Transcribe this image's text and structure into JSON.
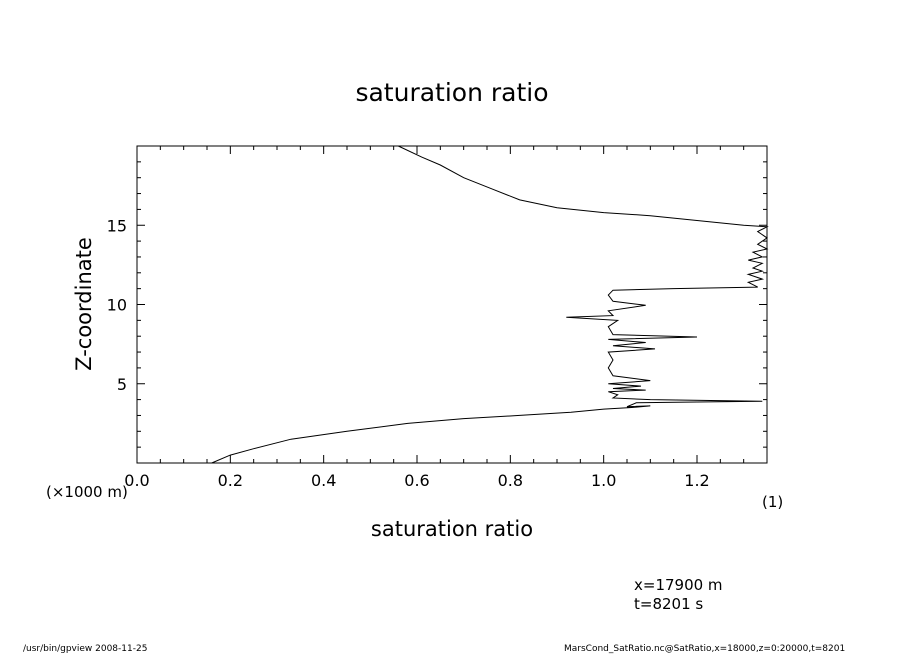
{
  "chart_data": {
    "type": "line",
    "title": "saturation ratio",
    "xlabel": "saturation ratio",
    "ylabel": "Z-coordinate",
    "x_unit": "(1)",
    "y_unit": "(×1000 m)",
    "xlim": [
      0.0,
      1.35
    ],
    "ylim": [
      0,
      20
    ],
    "x_ticks": [
      "0.0",
      "0.2",
      "0.4",
      "0.6",
      "0.8",
      "1.0",
      "1.2"
    ],
    "y_ticks": [
      "5",
      "10",
      "15"
    ],
    "x_tick_values": [
      0.0,
      0.2,
      0.4,
      0.6,
      0.8,
      1.0,
      1.2
    ],
    "y_tick_values": [
      5,
      10,
      15
    ],
    "grid": false,
    "series": [
      {
        "points": [
          [
            0.16,
            0.0
          ],
          [
            0.2,
            0.5
          ],
          [
            0.25,
            0.9
          ],
          [
            0.33,
            1.5
          ],
          [
            0.45,
            2.0
          ],
          [
            0.58,
            2.5
          ],
          [
            0.7,
            2.8
          ],
          [
            0.82,
            3.0
          ],
          [
            0.93,
            3.2
          ],
          [
            1.0,
            3.4
          ],
          [
            1.06,
            3.5
          ],
          [
            1.1,
            3.6
          ],
          [
            1.05,
            3.55
          ],
          [
            1.07,
            3.8
          ],
          [
            1.2,
            3.85
          ],
          [
            1.34,
            3.9
          ],
          [
            1.1,
            4.0
          ],
          [
            1.02,
            4.1
          ],
          [
            1.03,
            4.3
          ],
          [
            1.01,
            4.5
          ],
          [
            1.09,
            4.6
          ],
          [
            1.02,
            4.7
          ],
          [
            1.08,
            4.85
          ],
          [
            1.01,
            5.0
          ],
          [
            1.1,
            5.2
          ],
          [
            1.02,
            5.5
          ],
          [
            1.01,
            6.0
          ],
          [
            1.02,
            6.5
          ],
          [
            1.01,
            7.0
          ],
          [
            1.11,
            7.2
          ],
          [
            1.02,
            7.4
          ],
          [
            1.09,
            7.6
          ],
          [
            1.01,
            7.8
          ],
          [
            1.2,
            7.95
          ],
          [
            1.02,
            8.1
          ],
          [
            1.01,
            8.6
          ],
          [
            1.03,
            9.0
          ],
          [
            0.92,
            9.2
          ],
          [
            1.02,
            9.3
          ],
          [
            1.01,
            9.6
          ],
          [
            1.09,
            9.95
          ],
          [
            1.02,
            10.2
          ],
          [
            1.01,
            10.6
          ],
          [
            1.02,
            10.9
          ],
          [
            1.15,
            11.0
          ],
          [
            1.33,
            11.1
          ],
          [
            1.31,
            11.4
          ],
          [
            1.34,
            11.6
          ],
          [
            1.31,
            11.9
          ],
          [
            1.34,
            12.1
          ],
          [
            1.32,
            12.3
          ],
          [
            1.34,
            12.6
          ],
          [
            1.31,
            12.8
          ],
          [
            1.34,
            13.0
          ],
          [
            1.32,
            13.3
          ],
          [
            1.35,
            13.5
          ],
          [
            1.33,
            13.8
          ],
          [
            1.35,
            14.2
          ],
          [
            1.33,
            14.6
          ],
          [
            1.35,
            14.9
          ],
          [
            1.3,
            15.0
          ],
          [
            1.2,
            15.3
          ],
          [
            1.1,
            15.6
          ],
          [
            1.0,
            15.8
          ],
          [
            0.9,
            16.1
          ],
          [
            0.82,
            16.6
          ],
          [
            0.76,
            17.3
          ],
          [
            0.7,
            18.0
          ],
          [
            0.65,
            18.8
          ],
          [
            0.61,
            19.3
          ],
          [
            0.56,
            20.0
          ]
        ]
      }
    ]
  },
  "annotations": {
    "position_line1": "x=17900  m",
    "position_line2": "t=8201  s"
  },
  "footer": {
    "left": "/usr/bin/gpview   2008-11-25",
    "right": "MarsCond_SatRatio.nc@SatRatio,x=18000,z=0:20000,t=8201"
  }
}
